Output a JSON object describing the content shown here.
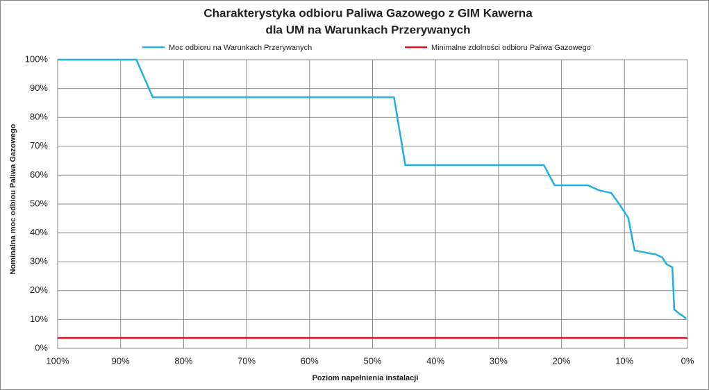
{
  "chart_data": {
    "type": "line",
    "title": [
      "Charakterystyka odbioru Paliwa Gazowego z GIM Kawerna",
      "dla UM na Warunkach Przerywanych"
    ],
    "x_label": "Poziom napełnienia instalacji",
    "y_label": "Nominalna moc odbiou Paliwa Gazowego",
    "xlim": [
      100,
      0
    ],
    "ylim": [
      0,
      100
    ],
    "xticks": [
      {
        "value": 100,
        "label": "100%"
      },
      {
        "value": 90,
        "label": "90%"
      },
      {
        "value": 80,
        "label": "80%"
      },
      {
        "value": 70,
        "label": "70%"
      },
      {
        "value": 60,
        "label": "60%"
      },
      {
        "value": 50,
        "label": "50%"
      },
      {
        "value": 40,
        "label": "40%"
      },
      {
        "value": 30,
        "label": "30%"
      },
      {
        "value": 20,
        "label": "20%"
      },
      {
        "value": 10,
        "label": "10%"
      },
      {
        "value": 0,
        "label": "0%"
      }
    ],
    "yticks": [
      {
        "value": 0,
        "label": "0%"
      },
      {
        "value": 10,
        "label": "10%"
      },
      {
        "value": 20,
        "label": "20%"
      },
      {
        "value": 30,
        "label": "30%"
      },
      {
        "value": 40,
        "label": "40%"
      },
      {
        "value": 50,
        "label": "50%"
      },
      {
        "value": 60,
        "label": "60%"
      },
      {
        "value": 70,
        "label": "70%"
      },
      {
        "value": 80,
        "label": "80%"
      },
      {
        "value": 90,
        "label": "90%"
      },
      {
        "value": 100,
        "label": "100%"
      }
    ],
    "grid": true,
    "series": [
      {
        "name": "Moc odbioru na Warunkach Przerywanych",
        "color": "#1fb0e0",
        "x": [
          100,
          87.5,
          84.9,
          46.6,
          44.8,
          22.8,
          21.1,
          15.8,
          14.1,
          12.1,
          11,
          9.4,
          8.4,
          5.0,
          4.0,
          3.3,
          2.4,
          2.1,
          1.3,
          0.7,
          0.2
        ],
        "values": [
          100,
          100,
          87,
          87,
          63.5,
          63.5,
          56.5,
          56.5,
          54.8,
          53.8,
          50.5,
          45.2,
          33.9,
          32.5,
          31.5,
          29.1,
          28.1,
          13.5,
          12,
          11.2,
          10.3
        ]
      },
      {
        "name": "Minimalne zdolności odbioru Paliwa Gazowego",
        "color": "#e0161e",
        "x": [
          100,
          0
        ],
        "values": [
          3.6,
          3.6
        ]
      }
    ]
  }
}
